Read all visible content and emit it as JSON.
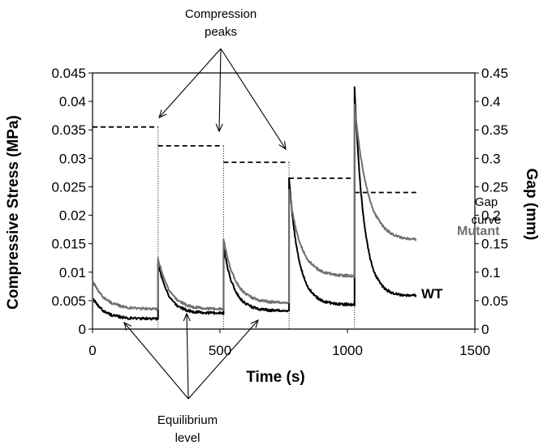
{
  "chart_data": {
    "type": "line",
    "xlabel": "Time (s)",
    "ylabel_left": "Compressive Stress (MPa)",
    "ylabel_right": "Gap (mm)",
    "xlim": [
      0,
      1500
    ],
    "ylim_left": [
      0,
      0.045
    ],
    "ylim_right": [
      0,
      0.45
    ],
    "x_ticks": [
      "0",
      "500",
      "1000",
      "1500"
    ],
    "y_ticks_left": [
      "0",
      "0.005",
      "0.01",
      "0.015",
      "0.02",
      "0.025",
      "0.03",
      "0.035",
      "0.04",
      "0.045"
    ],
    "y_ticks_right": [
      "0",
      "0.05",
      "0.1",
      "0.15",
      "0.2",
      "0.25",
      "0.3",
      "0.35",
      "0.4",
      "0.45"
    ],
    "grid": false,
    "series": [
      {
        "name": "WT",
        "axis": "left",
        "color": "#000000",
        "segments": [
          {
            "t0": 0,
            "peak": 0.0055,
            "eq": 0.0018,
            "tau": 45
          },
          {
            "t0": 257,
            "peak": 0.0118,
            "eq": 0.0028,
            "tau": 40
          },
          {
            "t0": 514,
            "peak": 0.0145,
            "eq": 0.0032,
            "tau": 40
          },
          {
            "t0": 771,
            "peak": 0.0265,
            "eq": 0.0043,
            "tau": 38
          },
          {
            "t0": 1028,
            "peak": 0.0425,
            "eq": 0.0058,
            "tau": 36,
            "t_end": 1270
          }
        ]
      },
      {
        "name": "Mutant",
        "axis": "left",
        "color": "#707070",
        "segments": [
          {
            "t0": 0,
            "peak": 0.0085,
            "eq": 0.0035,
            "tau": 50
          },
          {
            "t0": 257,
            "peak": 0.0125,
            "eq": 0.0035,
            "tau": 45
          },
          {
            "t0": 514,
            "peak": 0.0158,
            "eq": 0.0046,
            "tau": 45
          },
          {
            "t0": 771,
            "peak": 0.0245,
            "eq": 0.0093,
            "tau": 45
          },
          {
            "t0": 1028,
            "peak": 0.0395,
            "eq": 0.0155,
            "tau": 50,
            "t_end": 1270
          }
        ]
      },
      {
        "name": "Gap curve",
        "axis": "right",
        "color": "#000000",
        "style": "dashed",
        "steps": [
          {
            "x0": 0,
            "x1": 257,
            "y": 0.355
          },
          {
            "x0": 257,
            "x1": 514,
            "y": 0.322
          },
          {
            "x0": 514,
            "x1": 771,
            "y": 0.293
          },
          {
            "x0": 771,
            "x1": 1028,
            "y": 0.265
          },
          {
            "x0": 1028,
            "x1": 1270,
            "y": 0.24
          }
        ]
      }
    ],
    "annotations": {
      "compression_peaks": "Compression\npeaks",
      "equilibrium_level": "Equilibrium\nlevel",
      "gap_curve": "Gap\ncurve",
      "mutant": "Mutant",
      "wt": "WT"
    }
  }
}
